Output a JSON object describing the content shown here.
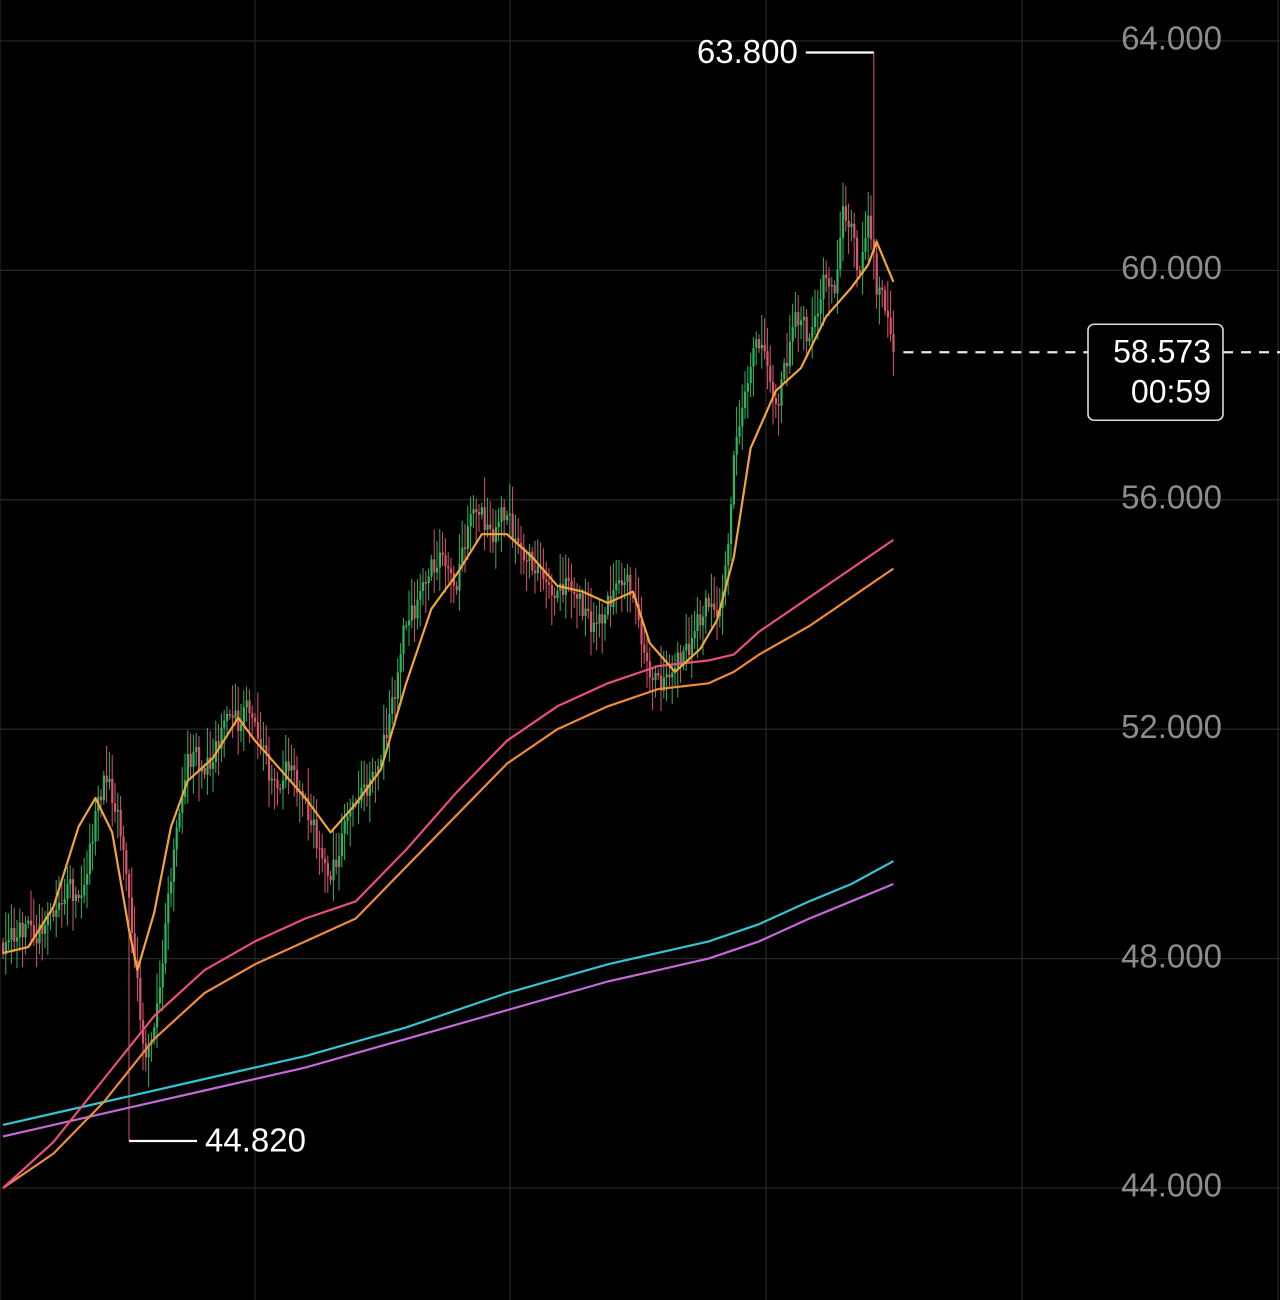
{
  "chart_data": {
    "type": "candlestick",
    "title": "",
    "xlabel": "",
    "ylabel": "",
    "ylim": [
      42000,
      65000
    ],
    "y_ticks": [
      "64.000",
      "60.000",
      "56.000",
      "52.000",
      "48.000",
      "44.000"
    ],
    "y_tick_values": [
      64000,
      60000,
      56000,
      52000,
      48000,
      44000
    ],
    "grid": true,
    "current_price": {
      "value": 58573,
      "label": "58.573",
      "countdown": "00:59"
    },
    "highest": {
      "value": 63800,
      "label": "63.800"
    },
    "lowest": {
      "value": 44820,
      "label": "44.820"
    },
    "colors": {
      "up": "#2db55d",
      "down": "#d9546b",
      "ma_short": "#f0a43c",
      "ma_mid_a": "#e8507a",
      "ma_mid_b": "#f08a3c",
      "ma_long_a": "#35c4d4",
      "ma_long_b": "#c46ad8"
    },
    "close_path": [
      [
        0,
        48280
      ],
      [
        3,
        48330
      ],
      [
        6,
        48500
      ],
      [
        9,
        48620
      ],
      [
        12,
        48300
      ],
      [
        15,
        48700
      ],
      [
        18,
        48750
      ],
      [
        21,
        49050
      ],
      [
        24,
        49250
      ],
      [
        27,
        49000
      ],
      [
        30,
        49500
      ],
      [
        33,
        50500
      ],
      [
        36,
        51200
      ],
      [
        39,
        50800
      ],
      [
        42,
        50300
      ],
      [
        45,
        49000
      ],
      [
        48,
        47500
      ],
      [
        51,
        46200
      ],
      [
        54,
        46800
      ],
      [
        57,
        48000
      ],
      [
        60,
        49500
      ],
      [
        63,
        50600
      ],
      [
        66,
        51400
      ],
      [
        69,
        51600
      ],
      [
        72,
        51200
      ],
      [
        75,
        51500
      ],
      [
        78,
        52000
      ],
      [
        81,
        52300
      ],
      [
        84,
        52100
      ],
      [
        87,
        52400
      ],
      [
        90,
        52100
      ],
      [
        93,
        51600
      ],
      [
        96,
        51100
      ],
      [
        99,
        51000
      ],
      [
        102,
        51400
      ],
      [
        105,
        51100
      ],
      [
        108,
        50600
      ],
      [
        111,
        50300
      ],
      [
        114,
        49700
      ],
      [
        117,
        49400
      ],
      [
        120,
        49900
      ],
      [
        123,
        50500
      ],
      [
        126,
        50800
      ],
      [
        129,
        50900
      ],
      [
        132,
        51200
      ],
      [
        135,
        51500
      ],
      [
        138,
        52200
      ],
      [
        141,
        53000
      ],
      [
        144,
        53900
      ],
      [
        147,
        54100
      ],
      [
        150,
        54500
      ],
      [
        153,
        54800
      ],
      [
        156,
        55000
      ],
      [
        159,
        54800
      ],
      [
        162,
        54500
      ],
      [
        165,
        55300
      ],
      [
        168,
        55900
      ],
      [
        171,
        55700
      ],
      [
        174,
        55400
      ],
      [
        177,
        55600
      ],
      [
        180,
        55800
      ],
      [
        183,
        55300
      ],
      [
        186,
        55000
      ],
      [
        189,
        54900
      ],
      [
        192,
        54700
      ],
      [
        195,
        54500
      ],
      [
        198,
        54300
      ],
      [
        201,
        54600
      ],
      [
        204,
        54400
      ],
      [
        207,
        54100
      ],
      [
        210,
        53900
      ],
      [
        213,
        53800
      ],
      [
        216,
        54200
      ],
      [
        219,
        54500
      ],
      [
        222,
        54600
      ],
      [
        225,
        54400
      ],
      [
        228,
        53500
      ],
      [
        231,
        53000
      ],
      [
        234,
        52800
      ],
      [
        237,
        52900
      ],
      [
        240,
        53100
      ],
      [
        243,
        53300
      ],
      [
        246,
        53600
      ],
      [
        249,
        53900
      ],
      [
        252,
        54300
      ],
      [
        255,
        53900
      ],
      [
        258,
        54700
      ],
      [
        261,
        56700
      ],
      [
        264,
        57600
      ],
      [
        267,
        58400
      ],
      [
        270,
        58800
      ],
      [
        273,
        58400
      ],
      [
        276,
        57500
      ],
      [
        279,
        58300
      ],
      [
        282,
        59000
      ],
      [
        285,
        59200
      ],
      [
        288,
        58800
      ],
      [
        291,
        59300
      ],
      [
        294,
        60000
      ],
      [
        297,
        59500
      ],
      [
        300,
        61100
      ],
      [
        303,
        60700
      ],
      [
        306,
        59900
      ],
      [
        309,
        61000
      ],
      [
        312,
        59700
      ],
      [
        315,
        59500
      ],
      [
        318,
        58573
      ]
    ],
    "ma_short": [
      [
        0,
        48100
      ],
      [
        9,
        48200
      ],
      [
        18,
        48900
      ],
      [
        27,
        50300
      ],
      [
        33,
        50800
      ],
      [
        39,
        50200
      ],
      [
        45,
        48500
      ],
      [
        48,
        47800
      ],
      [
        54,
        48800
      ],
      [
        60,
        50300
      ],
      [
        66,
        51100
      ],
      [
        75,
        51500
      ],
      [
        84,
        52200
      ],
      [
        90,
        51800
      ],
      [
        99,
        51300
      ],
      [
        108,
        50800
      ],
      [
        117,
        50200
      ],
      [
        126,
        50700
      ],
      [
        135,
        51300
      ],
      [
        144,
        52800
      ],
      [
        153,
        54100
      ],
      [
        162,
        54700
      ],
      [
        171,
        55400
      ],
      [
        180,
        55400
      ],
      [
        189,
        55000
      ],
      [
        198,
        54500
      ],
      [
        207,
        54400
      ],
      [
        216,
        54200
      ],
      [
        225,
        54400
      ],
      [
        231,
        53500
      ],
      [
        240,
        53000
      ],
      [
        249,
        53400
      ],
      [
        255,
        53900
      ],
      [
        261,
        55000
      ],
      [
        267,
        56900
      ],
      [
        276,
        57900
      ],
      [
        285,
        58300
      ],
      [
        294,
        59200
      ],
      [
        303,
        59700
      ],
      [
        309,
        60100
      ],
      [
        312,
        60500
      ],
      [
        318,
        59800
      ]
    ],
    "ma_mid_a": [
      [
        0,
        44000
      ],
      [
        18,
        44800
      ],
      [
        36,
        45900
      ],
      [
        54,
        47000
      ],
      [
        72,
        47800
      ],
      [
        90,
        48300
      ],
      [
        108,
        48700
      ],
      [
        126,
        49000
      ],
      [
        144,
        49900
      ],
      [
        162,
        50900
      ],
      [
        180,
        51800
      ],
      [
        198,
        52400
      ],
      [
        216,
        52800
      ],
      [
        234,
        53100
      ],
      [
        252,
        53200
      ],
      [
        261,
        53300
      ],
      [
        270,
        53700
      ],
      [
        288,
        54300
      ],
      [
        303,
        54800
      ],
      [
        318,
        55300
      ]
    ],
    "ma_mid_b": [
      [
        0,
        44000
      ],
      [
        18,
        44600
      ],
      [
        36,
        45500
      ],
      [
        54,
        46600
      ],
      [
        72,
        47400
      ],
      [
        90,
        47900
      ],
      [
        108,
        48300
      ],
      [
        126,
        48700
      ],
      [
        144,
        49600
      ],
      [
        162,
        50500
      ],
      [
        180,
        51400
      ],
      [
        198,
        52000
      ],
      [
        216,
        52400
      ],
      [
        234,
        52700
      ],
      [
        252,
        52800
      ],
      [
        261,
        53000
      ],
      [
        270,
        53300
      ],
      [
        288,
        53800
      ],
      [
        303,
        54300
      ],
      [
        318,
        54800
      ]
    ],
    "ma_long_a": [
      [
        0,
        45100
      ],
      [
        36,
        45500
      ],
      [
        72,
        45900
      ],
      [
        108,
        46300
      ],
      [
        144,
        46800
      ],
      [
        180,
        47400
      ],
      [
        216,
        47900
      ],
      [
        252,
        48300
      ],
      [
        270,
        48600
      ],
      [
        288,
        49000
      ],
      [
        303,
        49300
      ],
      [
        318,
        49700
      ]
    ],
    "ma_long_b": [
      [
        0,
        44900
      ],
      [
        36,
        45300
      ],
      [
        72,
        45700
      ],
      [
        108,
        46100
      ],
      [
        144,
        46600
      ],
      [
        180,
        47100
      ],
      [
        216,
        47600
      ],
      [
        252,
        48000
      ],
      [
        270,
        48300
      ],
      [
        288,
        48700
      ],
      [
        303,
        49000
      ],
      [
        318,
        49300
      ]
    ]
  }
}
